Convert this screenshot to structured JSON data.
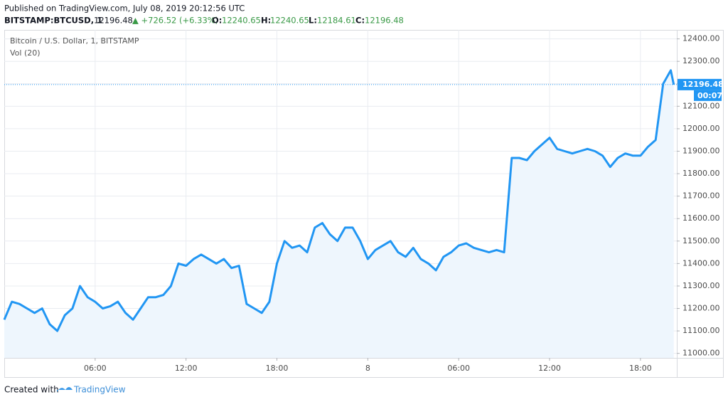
{
  "header": {
    "published": "Published on TradingView.com, July 08, 2019 20:12:56 UTC",
    "symbol": "BITSTAMP:BTCUSD, 1",
    "last": "12196.48",
    "change": "▲ +726.52 (+6.33%)",
    "o_label": "O:",
    "o": "12240.65",
    "h_label": "H:",
    "h": "12240.65",
    "l_label": "L:",
    "l": "12184.61",
    "c_label": "C:",
    "c": "12196.48"
  },
  "footer": {
    "created": "Created with",
    "brand": "TradingView"
  },
  "chart_data": {
    "type": "area",
    "title": "Bitcoin / U.S. Dollar, 1, BITSTAMP",
    "subtitle": "Vol (20)",
    "color": "#2196f3",
    "fill": "#eef6fd",
    "grid": true,
    "last_price": 12196.48,
    "countdown": "00:07",
    "x": [
      0,
      0.5,
      1,
      1.5,
      2,
      2.5,
      3,
      3.5,
      4,
      4.5,
      5,
      5.5,
      6,
      6.5,
      7,
      7.5,
      8,
      8.5,
      9,
      9.5,
      10,
      10.5,
      11,
      11.5,
      12,
      12.5,
      13,
      13.5,
      14,
      14.5,
      15,
      15.5,
      16,
      16.5,
      17,
      17.5,
      18,
      18.5,
      19,
      19.5,
      20,
      20.5,
      21,
      21.5,
      22,
      22.5,
      23,
      23.5,
      24,
      24.5,
      25,
      25.5,
      26,
      26.5,
      27,
      27.5,
      28,
      28.5,
      29,
      29.5,
      30,
      30.5,
      31,
      31.5,
      32,
      32.5,
      33,
      33.5,
      34,
      34.5,
      35,
      35.5,
      36,
      36.5,
      37,
      37.5,
      38,
      38.5,
      39,
      39.5,
      40,
      40.5,
      41,
      41.5,
      42,
      42.5,
      43,
      43.5,
      44,
      44.2
    ],
    "values": [
      11150,
      11230,
      11220,
      11200,
      11180,
      11200,
      11130,
      11100,
      11170,
      11200,
      11300,
      11250,
      11230,
      11200,
      11210,
      11230,
      11180,
      11150,
      11200,
      11250,
      11250,
      11260,
      11300,
      11400,
      11390,
      11420,
      11440,
      11420,
      11400,
      11420,
      11380,
      11390,
      11220,
      11200,
      11180,
      11230,
      11400,
      11500,
      11470,
      11480,
      11450,
      11560,
      11580,
      11530,
      11500,
      11560,
      11560,
      11500,
      11420,
      11460,
      11480,
      11500,
      11450,
      11430,
      11470,
      11420,
      11400,
      11370,
      11430,
      11450,
      11480,
      11490,
      11470,
      11460,
      11450,
      11460,
      11450,
      11870,
      11870,
      11860,
      11900,
      11930,
      11960,
      11910,
      11900,
      11890,
      11900,
      11910,
      11900,
      11880,
      11830,
      11870,
      11890,
      11880,
      11880,
      11920,
      11950,
      12200,
      12260,
      12196.48
    ],
    "xlim": [
      0,
      44.4
    ],
    "xticks": [
      {
        "value": 6,
        "label": "06:00"
      },
      {
        "value": 12,
        "label": "12:00"
      },
      {
        "value": 18,
        "label": "18:00"
      },
      {
        "value": 24,
        "label": "8"
      },
      {
        "value": 30,
        "label": "06:00"
      },
      {
        "value": 36,
        "label": "12:00"
      },
      {
        "value": 42,
        "label": "18:00"
      }
    ],
    "ylim": [
      10980,
      12440
    ],
    "yticks": [
      {
        "value": 11000,
        "label": "11000.00"
      },
      {
        "value": 11100,
        "label": "11100.00"
      },
      {
        "value": 11200,
        "label": "11200.00"
      },
      {
        "value": 11300,
        "label": "11300.00"
      },
      {
        "value": 11400,
        "label": "11400.00"
      },
      {
        "value": 11500,
        "label": "11500.00"
      },
      {
        "value": 11600,
        "label": "11600.00"
      },
      {
        "value": 11700,
        "label": "11700.00"
      },
      {
        "value": 11800,
        "label": "11800.00"
      },
      {
        "value": 11900,
        "label": "11900.00"
      },
      {
        "value": 12000,
        "label": "12000.00"
      },
      {
        "value": 12100,
        "label": "12100.00"
      },
      {
        "value": 12200,
        "label": "12200.00"
      },
      {
        "value": 12300,
        "label": "12300.00"
      },
      {
        "value": 12400,
        "label": "12400.00"
      }
    ]
  }
}
